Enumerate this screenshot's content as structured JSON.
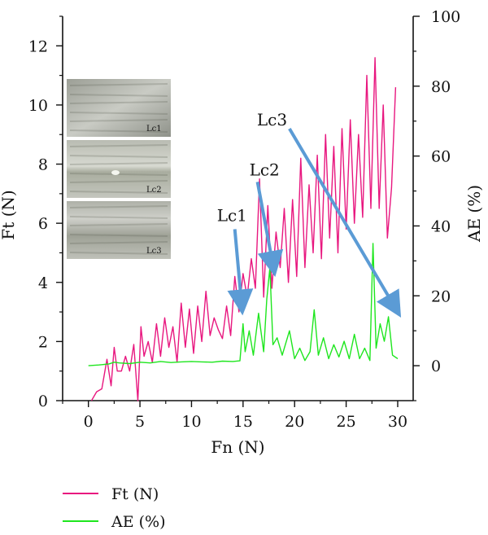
{
  "chart_data": {
    "type": "line",
    "xlabel": "Fn (N)",
    "ylabel_left": "Ft (N)",
    "ylabel_right": "AE (%)",
    "xlim": [
      -2.5,
      31.5
    ],
    "ylim_left": [
      0,
      13
    ],
    "ylim_right": [
      -10,
      100
    ],
    "x_ticks": [
      0,
      5,
      10,
      15,
      20,
      25,
      30
    ],
    "y_left_ticks": [
      0,
      2,
      4,
      6,
      8,
      10,
      12
    ],
    "y_right_ticks": [
      0,
      20,
      40,
      60,
      80,
      100
    ],
    "grid": false,
    "legend_position": "bottom-left",
    "series": [
      {
        "name": "Ft (N)",
        "axis": "left",
        "color": "#e8177f",
        "x": [
          0.3,
          0.8,
          1.3,
          1.8,
          2.2,
          2.5,
          2.8,
          3.2,
          3.6,
          4.0,
          4.4,
          4.8,
          5.1,
          5.4,
          5.8,
          6.2,
          6.6,
          7.0,
          7.4,
          7.8,
          8.2,
          8.6,
          9.0,
          9.4,
          9.8,
          10.2,
          10.6,
          11.0,
          11.4,
          11.8,
          12.2,
          12.6,
          13.0,
          13.4,
          13.8,
          14.2,
          14.6,
          15.0,
          15.4,
          15.8,
          16.2,
          16.6,
          17.0,
          17.4,
          17.8,
          18.2,
          18.6,
          19.0,
          19.4,
          19.8,
          20.2,
          20.6,
          21.0,
          21.4,
          21.8,
          22.2,
          22.6,
          23.0,
          23.4,
          23.8,
          24.2,
          24.6,
          25.0,
          25.4,
          25.8,
          26.2,
          26.6,
          27.0,
          27.4,
          27.8,
          28.2,
          28.6,
          29.0,
          29.4,
          29.8
        ],
        "y": [
          0.0,
          0.3,
          0.4,
          1.4,
          0.5,
          1.8,
          1.0,
          1.0,
          1.5,
          1.0,
          1.9,
          0.0,
          2.5,
          1.5,
          2.0,
          1.3,
          2.6,
          1.5,
          2.8,
          1.8,
          2.5,
          1.3,
          3.3,
          1.8,
          3.1,
          1.6,
          3.2,
          2.0,
          3.7,
          2.2,
          2.8,
          2.4,
          2.1,
          3.2,
          2.2,
          4.2,
          3.0,
          4.3,
          3.5,
          4.8,
          3.8,
          7.5,
          3.5,
          6.6,
          3.8,
          5.7,
          4.5,
          6.5,
          4.0,
          6.8,
          4.2,
          8.2,
          4.5,
          7.3,
          5.0,
          8.3,
          4.8,
          9.0,
          5.5,
          8.6,
          5.0,
          9.2,
          5.8,
          9.5,
          6.0,
          9.0,
          6.2,
          11.0,
          6.5,
          11.6,
          6.5,
          10.0,
          5.5,
          7.2,
          10.6
        ]
      },
      {
        "name": "AE (%)",
        "axis": "right",
        "color": "#1ee61e",
        "x": [
          0.0,
          1.0,
          2.0,
          2.5,
          3.0,
          4.0,
          5.0,
          6.0,
          7.0,
          8.0,
          9.0,
          10.0,
          11.0,
          12.0,
          13.0,
          14.0,
          14.7,
          15.0,
          15.2,
          15.6,
          16.0,
          16.5,
          17.0,
          17.3,
          17.6,
          17.9,
          18.3,
          18.8,
          19.5,
          20.0,
          20.5,
          21.0,
          21.5,
          21.9,
          22.3,
          22.8,
          23.3,
          23.8,
          24.3,
          24.8,
          25.3,
          25.8,
          26.3,
          26.8,
          27.3,
          27.6,
          27.9,
          28.3,
          28.7,
          29.1,
          29.5,
          30.0
        ],
        "y": [
          0.0,
          0.2,
          0.5,
          1.0,
          0.8,
          0.6,
          1.0,
          0.8,
          1.2,
          0.9,
          1.1,
          1.2,
          1.1,
          1.0,
          1.3,
          1.2,
          1.4,
          12.0,
          4.0,
          10.0,
          3.0,
          15.0,
          4.0,
          19.0,
          28.0,
          6.0,
          8.0,
          3.0,
          10.0,
          2.0,
          5.0,
          1.5,
          4.0,
          16.0,
          3.0,
          8.0,
          2.0,
          6.0,
          2.5,
          7.0,
          2.0,
          9.0,
          2.0,
          5.0,
          1.5,
          35.0,
          5.0,
          12.0,
          7.0,
          14.0,
          3.0,
          2.0
        ]
      }
    ],
    "annotations": [
      {
        "label": "Lc1",
        "from_xy": [
          14.2,
          5.8
        ],
        "to_xy": [
          14.9,
          3.1
        ]
      },
      {
        "label": "Lc2",
        "from_xy": [
          16.4,
          7.4
        ],
        "to_xy": [
          18.0,
          4.4
        ]
      },
      {
        "label": "Lc3",
        "from_xy": [
          19.5,
          9.2
        ],
        "to_xy": [
          30.0,
          3.0
        ]
      }
    ],
    "annotation_color": "#5b9bd5",
    "inset_images": [
      {
        "label": "Lc1",
        "type": "micrograph"
      },
      {
        "label": "Lc2",
        "type": "micrograph"
      },
      {
        "label": "Lc3",
        "type": "micrograph"
      }
    ]
  }
}
